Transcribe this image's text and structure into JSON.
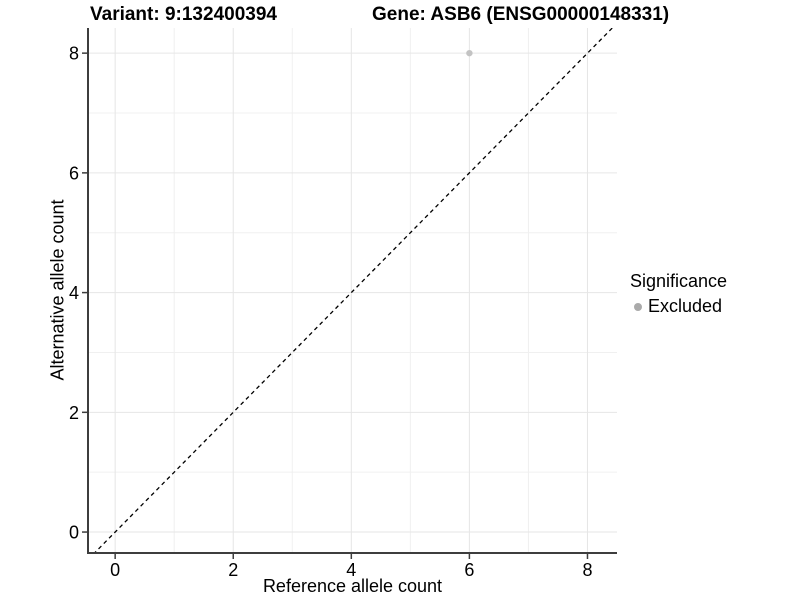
{
  "chart_data": {
    "type": "scatter",
    "title_variant": "Variant: 9:132400394",
    "title_gene": "Gene: ASB6 (ENSG00000148331)",
    "xlabel": "Reference allele count",
    "ylabel": "Alternative allele count",
    "xlim": [
      -0.46,
      8.5
    ],
    "ylim": [
      -0.35,
      8.42
    ],
    "xticks": [
      0,
      2,
      4,
      6,
      8
    ],
    "yticks": [
      0,
      2,
      4,
      6,
      8
    ],
    "minor_xticks": [
      1,
      3,
      5,
      7
    ],
    "minor_yticks": [
      1,
      3,
      5,
      7
    ],
    "grid": true,
    "points": [
      {
        "x": 6,
        "y": 8,
        "series": "Excluded"
      }
    ],
    "reference_line": {
      "style": "dashed",
      "slope": 1,
      "intercept": 0,
      "description": "identity line y = x"
    },
    "legend": {
      "title": "Significance",
      "position": "right",
      "items": [
        {
          "label": "Excluded",
          "color": "#aaaaaa"
        }
      ]
    },
    "colors": {
      "point": "#c3c3c3",
      "reference_line": "#000000",
      "grid_major": "#e6e6e6",
      "grid_minor": "#f0f0f0",
      "axis_line": "#3d3d3d",
      "text": "#000000",
      "background": "#ffffff"
    }
  }
}
